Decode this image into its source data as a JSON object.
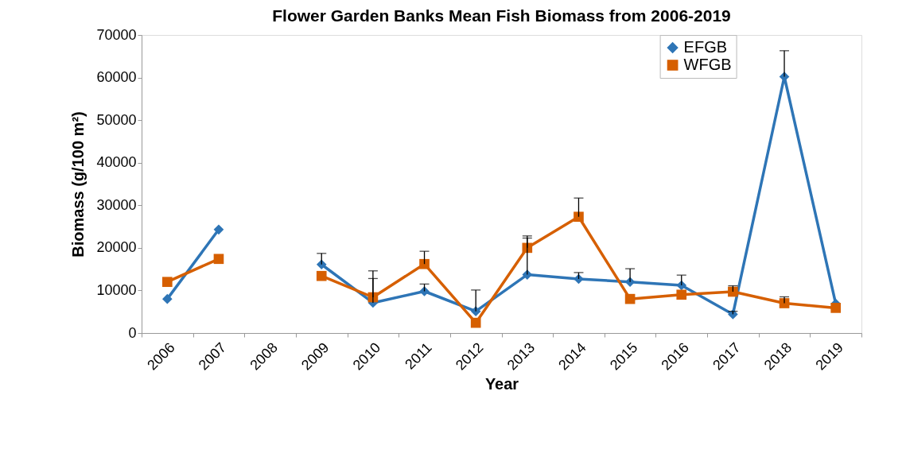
{
  "chart_data": {
    "type": "line",
    "title": "Flower Garden Banks Mean Fish Biomass from 2006-2019",
    "xlabel": "Year",
    "ylabel": "Biomass (g/100 m²)",
    "categories": [
      "2006",
      "2007",
      "2008",
      "2009",
      "2010",
      "2011",
      "2012",
      "2013",
      "2014",
      "2015",
      "2016",
      "2017",
      "2018",
      "2019"
    ],
    "series": [
      {
        "name": "EFGB",
        "color": "#2e75b6",
        "marker": "diamond",
        "values": [
          8000,
          24300,
          null,
          16100,
          7100,
          9800,
          5100,
          13700,
          12700,
          12000,
          11200,
          4400,
          60200,
          6900
        ],
        "errors": [
          null,
          null,
          null,
          [
            16100,
            18700
          ],
          [
            7100,
            12800
          ],
          [
            9800,
            11500
          ],
          [
            5100,
            10100
          ],
          [
            13700,
            22300
          ],
          [
            12700,
            14200
          ],
          [
            12000,
            15100
          ],
          [
            11200,
            13600
          ],
          [
            4400,
            5100
          ],
          [
            60200,
            66300
          ],
          null
        ]
      },
      {
        "name": "WFGB",
        "color": "#d65f00",
        "marker": "square",
        "values": [
          12000,
          17400,
          null,
          13400,
          8400,
          16200,
          2400,
          20000,
          27300,
          8000,
          9000,
          9700,
          7000,
          5900
        ],
        "errors": [
          null,
          null,
          null,
          null,
          [
            8400,
            14600
          ],
          [
            16200,
            19200
          ],
          null,
          [
            20000,
            22800
          ],
          [
            27300,
            31700
          ],
          null,
          null,
          [
            9700,
            11100
          ],
          [
            7000,
            8500
          ],
          null
        ]
      }
    ],
    "ylim": [
      0,
      70000
    ],
    "yticks": [
      0,
      10000,
      20000,
      30000,
      40000,
      50000,
      60000,
      70000
    ],
    "grid": false,
    "legend": "top right",
    "line_style": "solid"
  }
}
